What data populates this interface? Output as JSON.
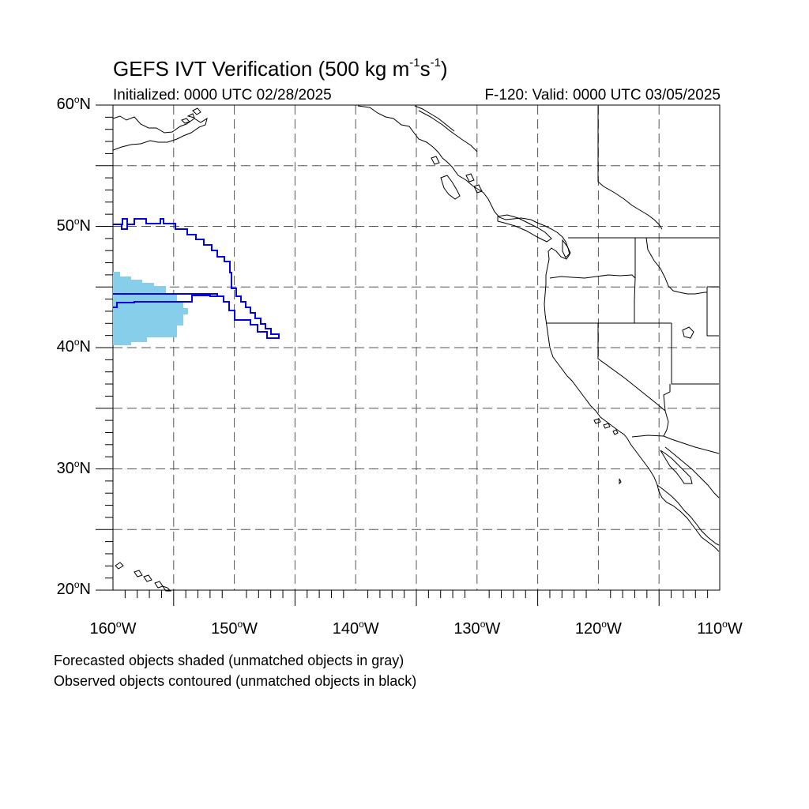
{
  "title": {
    "prefix": "GEFS IVT Verification (500 kg m",
    "exp1": "-1",
    "mid": "s",
    "exp2": "-1",
    "suffix": ")"
  },
  "initialized": "Initialized: 0000 UTC 02/28/2025",
  "valid": "F-120: Valid: 0000 UTC 03/05/2025",
  "axes": {
    "lat_labels": [
      {
        "text": "60",
        "unit": "N",
        "value": 60
      },
      {
        "text": "50",
        "unit": "N",
        "value": 50
      },
      {
        "text": "40",
        "unit": "N",
        "value": 40
      },
      {
        "text": "30",
        "unit": "N",
        "value": 30
      },
      {
        "text": "20",
        "unit": "N",
        "value": 20
      }
    ],
    "lon_labels": [
      {
        "text": "160",
        "unit": "W",
        "value": -160
      },
      {
        "text": "150",
        "unit": "W",
        "value": -150
      },
      {
        "text": "140",
        "unit": "W",
        "value": -140
      },
      {
        "text": "130",
        "unit": "W",
        "value": -130
      },
      {
        "text": "120",
        "unit": "W",
        "value": -120
      },
      {
        "text": "110",
        "unit": "W",
        "value": -110
      }
    ],
    "lon_range": [
      -160,
      -110
    ],
    "lat_range": [
      20,
      60
    ],
    "grid": true,
    "grid_interval_deg": 5
  },
  "colors": {
    "forecast_fill": "#87CEEB",
    "observed_contour": "#0000EE",
    "coast": "#000000",
    "grid": "#555555"
  },
  "legend": {
    "line1": "Forecasted objects shaded (unmatched objects in gray)",
    "line2": "Observed objects contoured (unmatched objects in black)"
  }
}
